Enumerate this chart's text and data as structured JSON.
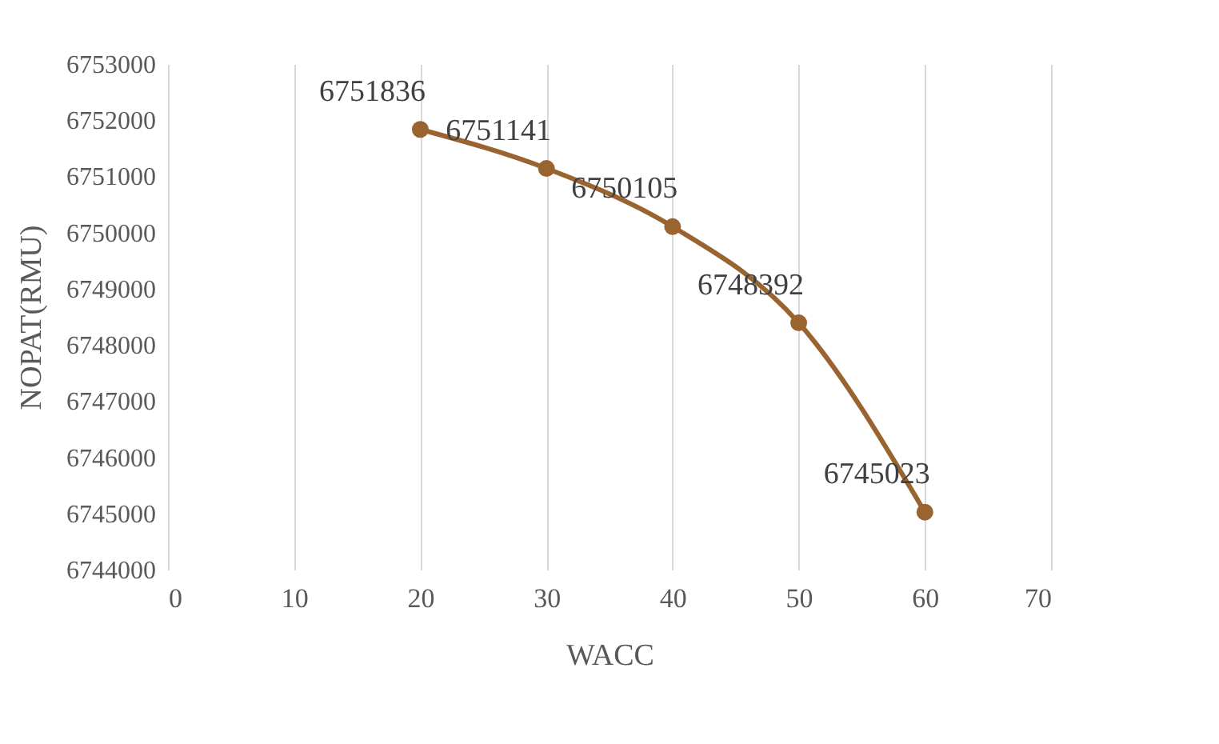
{
  "chart_data": {
    "type": "line",
    "xlabel": "WACC",
    "ylabel": "NOPAT(RMU)",
    "x": [
      20,
      30,
      40,
      50,
      60
    ],
    "series": [
      {
        "color": "#9a6430",
        "values": [
          6751836,
          6751141,
          6750105,
          6748392,
          6745023
        ]
      }
    ],
    "xlim": [
      0,
      70
    ],
    "xticks": [
      0,
      10,
      20,
      30,
      40,
      50,
      60,
      70
    ],
    "ylim": [
      6744000,
      6753000
    ],
    "yticks": [
      6744000,
      6745000,
      6746000,
      6747000,
      6748000,
      6749000,
      6750000,
      6751000,
      6752000,
      6753000
    ],
    "grid": "x",
    "data_labels": true,
    "marker": "circle",
    "line_style": "solid"
  }
}
